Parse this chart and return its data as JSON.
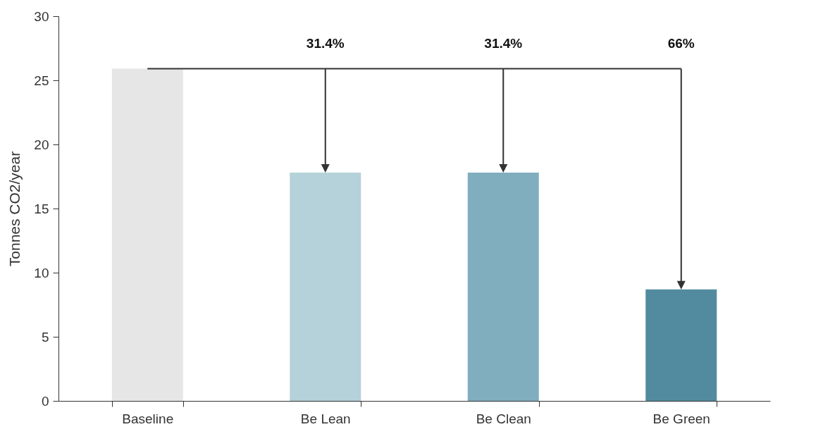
{
  "chart_data": {
    "type": "bar",
    "ylabel": "Tonnes CO2/year",
    "categories": [
      "Baseline",
      "Be Lean",
      "Be Clean",
      "Be Green"
    ],
    "values": [
      25.9,
      17.8,
      17.8,
      8.7
    ],
    "colors": [
      "#e6e6e6",
      "#b5d1d9",
      "#80aebf",
      "#528b9f"
    ],
    "ylim": [
      0,
      30
    ],
    "yticks": [
      0,
      5,
      10,
      15,
      20,
      25,
      30
    ],
    "grid": false,
    "legend": false,
    "annotations": [
      "31.4%",
      "31.4%",
      "66%"
    ],
    "ref_lines": [
      {
        "axis": "y",
        "value": 25.9
      }
    ]
  }
}
